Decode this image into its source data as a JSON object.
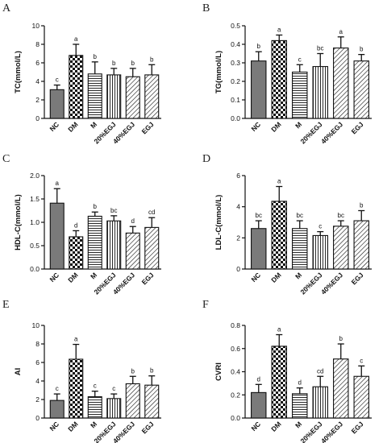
{
  "patterns": {
    "NC": "solid-dark",
    "DM": "checker",
    "M": "horizontal-lines",
    "20%EGJ": "vertical-lines",
    "40%EGJ": "diagonal-lines",
    "EGJ": "diagonal-lines"
  },
  "colors": {
    "dark": "#7a7a7a",
    "ink": "#111111",
    "paper": "#ffffff"
  },
  "chart_data": [
    {
      "panel": "A",
      "type": "bar",
      "ylabel": "TC(mmol/L)",
      "ylim": [
        0,
        10
      ],
      "yticks": [
        "0",
        "2",
        "4",
        "6",
        "8",
        "10"
      ],
      "ytick_values": [
        0,
        2,
        4,
        6,
        8,
        10
      ],
      "categories": [
        "NC",
        "DM",
        "M",
        "20%EGJ",
        "40%EGJ",
        "EGJ"
      ],
      "values": [
        3.1,
        6.8,
        4.8,
        4.7,
        4.5,
        4.7
      ],
      "errors": [
        0.5,
        1.2,
        1.3,
        0.7,
        0.9,
        1.1
      ],
      "labels": [
        "c",
        "a",
        "b",
        "b",
        "b",
        "b"
      ]
    },
    {
      "panel": "B",
      "type": "bar",
      "ylabel": "TG(mmol/L)",
      "ylim": [
        0,
        0.5
      ],
      "yticks": [
        "0.0",
        "0.1",
        "0.2",
        "0.3",
        "0.4",
        "0.5"
      ],
      "ytick_values": [
        0,
        0.1,
        0.2,
        0.3,
        0.4,
        0.5
      ],
      "categories": [
        "NC",
        "DM",
        "M",
        "20%EGJ",
        "40%EGJ",
        "EGJ"
      ],
      "values": [
        0.31,
        0.42,
        0.25,
        0.28,
        0.38,
        0.31
      ],
      "errors": [
        0.05,
        0.03,
        0.04,
        0.07,
        0.06,
        0.035
      ],
      "labels": [
        "b",
        "a",
        "c",
        "bc",
        "a",
        "b"
      ]
    },
    {
      "panel": "C",
      "type": "bar",
      "ylabel": "HDL-C(mmol/L)",
      "ylim": [
        0,
        2.0
      ],
      "yticks": [
        "0.0",
        "0.5",
        "1.0",
        "1.5",
        "2.0"
      ],
      "ytick_values": [
        0,
        0.5,
        1.0,
        1.5,
        2.0
      ],
      "categories": [
        "NC",
        "DM",
        "M",
        "20%EGJ",
        "40%EGJ",
        "EGJ"
      ],
      "values": [
        1.41,
        0.69,
        1.13,
        1.03,
        0.77,
        0.89
      ],
      "errors": [
        0.31,
        0.13,
        0.09,
        0.11,
        0.14,
        0.21
      ],
      "labels": [
        "a",
        "d",
        "b",
        "bc",
        "d",
        "cd"
      ]
    },
    {
      "panel": "D",
      "type": "bar",
      "ylabel": "LDL-C(mmol/L)",
      "ylim": [
        0,
        6
      ],
      "yticks": [
        "0",
        "2",
        "4",
        "6"
      ],
      "ytick_values": [
        0,
        2,
        4,
        6
      ],
      "categories": [
        "NC",
        "DM",
        "M",
        "20%EGJ",
        "40%EGJ",
        "EGJ"
      ],
      "values": [
        2.6,
        4.35,
        2.6,
        2.15,
        2.75,
        3.1
      ],
      "errors": [
        0.5,
        0.95,
        0.5,
        0.25,
        0.35,
        0.65
      ],
      "labels": [
        "bc",
        "a",
        "bc",
        "c",
        "bc",
        "b"
      ]
    },
    {
      "panel": "E",
      "type": "bar",
      "ylabel": "AI",
      "ylim": [
        0,
        10
      ],
      "yticks": [
        "0",
        "2",
        "4",
        "6",
        "8",
        "10"
      ],
      "ytick_values": [
        0,
        2,
        4,
        6,
        8,
        10
      ],
      "categories": [
        "NC",
        "DM",
        "M",
        "20%EGJ",
        "40%EGJ",
        "EGJ"
      ],
      "values": [
        1.9,
        6.35,
        2.3,
        2.1,
        3.7,
        3.55
      ],
      "errors": [
        0.7,
        1.6,
        0.6,
        0.5,
        0.8,
        1.0
      ],
      "labels": [
        "c",
        "a",
        "c",
        "c",
        "b",
        "b"
      ]
    },
    {
      "panel": "F",
      "type": "bar",
      "ylabel": "CVRI",
      "ylim": [
        0,
        0.8
      ],
      "yticks": [
        "0.0",
        "0.2",
        "0.4",
        "0.6",
        "0.8"
      ],
      "ytick_values": [
        0,
        0.2,
        0.4,
        0.6,
        0.8
      ],
      "categories": [
        "NC",
        "DM",
        "M",
        "20%EGJ",
        "40%EGJ",
        "EGJ"
      ],
      "values": [
        0.22,
        0.62,
        0.21,
        0.27,
        0.51,
        0.36
      ],
      "errors": [
        0.07,
        0.1,
        0.05,
        0.09,
        0.13,
        0.09
      ],
      "labels": [
        "d",
        "a",
        "d",
        "cd",
        "b",
        "c"
      ]
    }
  ]
}
